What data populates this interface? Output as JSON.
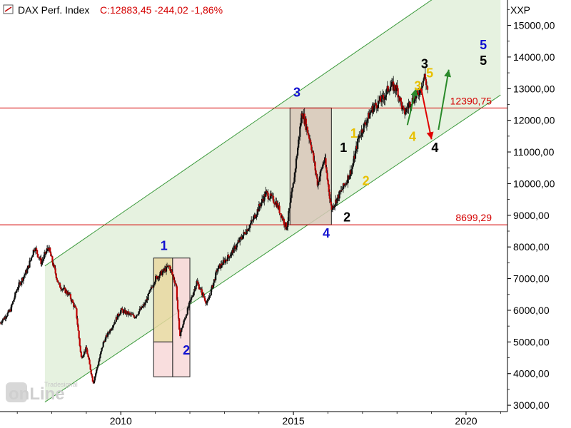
{
  "header": {
    "instrument": "DAX Perf. Index",
    "close_info": "C:12883,45 -244,02 -1,86%",
    "currency": "XXP"
  },
  "watermark": {
    "brand_small": "Tradesignal",
    "brand_large": "onLine"
  },
  "colors": {
    "channel_fill": "#e6f2e0",
    "channel_line": "#3c9a3c",
    "hline": "#d40000",
    "candle_up": "#111111",
    "candle_down": "#c00000",
    "wave_blue": "#1010d0",
    "wave_black": "#000000",
    "wave_yellow": "#e8c000",
    "arrow_red": "#e00000",
    "arrow_green": "#2a8a2a",
    "box_brown": "#d8c8b8",
    "box_pink": "#f8d8d8",
    "box_yellow": "#e8d8a0"
  },
  "chart_data": {
    "type": "candlestick",
    "title": "DAX Perf. Index",
    "ylim": [
      2800,
      15800
    ],
    "y_ticks": [
      3000,
      4000,
      5000,
      6000,
      7000,
      8000,
      9000,
      10000,
      11000,
      12000,
      13000,
      14000,
      15000
    ],
    "y_tick_labels": [
      "3000,00",
      "4000,00",
      "5000,00",
      "6000,00",
      "7000,00",
      "8000,00",
      "9000,00",
      "10000,00",
      "11000,00",
      "12000,00",
      "13000,00",
      "14000,00",
      "15000,00"
    ],
    "xlim": [
      2006.5,
      2021.2
    ],
    "x_ticks": [
      2010,
      2015,
      2020
    ],
    "x_tick_labels": [
      "2010",
      "2015",
      "2020"
    ],
    "horizontal_lines": [
      {
        "value": 12390.75,
        "label": "12390,75"
      },
      {
        "value": 8699.29,
        "label": "8699,29"
      }
    ],
    "price_path": [
      [
        2006.5,
        5600
      ],
      [
        2006.8,
        6000
      ],
      [
        2007.0,
        6700
      ],
      [
        2007.3,
        7300
      ],
      [
        2007.5,
        8000
      ],
      [
        2007.7,
        7500
      ],
      [
        2007.9,
        8000
      ],
      [
        2008.0,
        7600
      ],
      [
        2008.2,
        6800
      ],
      [
        2008.5,
        6500
      ],
      [
        2008.7,
        6000
      ],
      [
        2008.85,
        4500
      ],
      [
        2009.0,
        4800
      ],
      [
        2009.2,
        3700
      ],
      [
        2009.5,
        5000
      ],
      [
        2009.8,
        5600
      ],
      [
        2010.0,
        6000
      ],
      [
        2010.4,
        5800
      ],
      [
        2010.7,
        6200
      ],
      [
        2011.0,
        7000
      ],
      [
        2011.4,
        7400
      ],
      [
        2011.6,
        6800
      ],
      [
        2011.7,
        5200
      ],
      [
        2011.9,
        5900
      ],
      [
        2012.2,
        6900
      ],
      [
        2012.5,
        6200
      ],
      [
        2012.8,
        7300
      ],
      [
        2013.2,
        7800
      ],
      [
        2013.5,
        8300
      ],
      [
        2013.8,
        8800
      ],
      [
        2014.2,
        9700
      ],
      [
        2014.5,
        9400
      ],
      [
        2014.8,
        8600
      ],
      [
        2015.0,
        10000
      ],
      [
        2015.25,
        12300
      ],
      [
        2015.5,
        11300
      ],
      [
        2015.7,
        10000
      ],
      [
        2015.9,
        10800
      ],
      [
        2016.1,
        9200
      ],
      [
        2016.5,
        10000
      ],
      [
        2016.7,
        10500
      ],
      [
        2016.9,
        11500
      ],
      [
        2017.3,
        12400
      ],
      [
        2017.6,
        12700
      ],
      [
        2017.8,
        13100
      ],
      [
        2018.0,
        13000
      ],
      [
        2018.2,
        12200
      ],
      [
        2018.4,
        12600
      ],
      [
        2018.6,
        12800
      ],
      [
        2018.8,
        13400
      ],
      [
        2018.9,
        12883
      ]
    ],
    "channel_upper": [
      [
        2007.8,
        7400
      ],
      [
        2021.0,
        17300
      ]
    ],
    "channel_lower": [
      [
        2007.8,
        3100
      ],
      [
        2021.0,
        12800
      ]
    ],
    "annotations": [
      {
        "text": "1",
        "x": 2011.25,
        "y": 7900,
        "color": "blue"
      },
      {
        "text": "2",
        "x": 2011.9,
        "y": 4600,
        "color": "blue"
      },
      {
        "text": "3",
        "x": 2015.1,
        "y": 12750,
        "color": "blue"
      },
      {
        "text": "4",
        "x": 2015.95,
        "y": 8300,
        "color": "blue"
      },
      {
        "text": "5",
        "x": 2020.5,
        "y": 14250,
        "color": "blue"
      },
      {
        "text": "1",
        "x": 2016.45,
        "y": 11000,
        "color": "black"
      },
      {
        "text": "2",
        "x": 2016.55,
        "y": 8800,
        "color": "black"
      },
      {
        "text": "3",
        "x": 2018.8,
        "y": 13650,
        "color": "black"
      },
      {
        "text": "4",
        "x": 2019.1,
        "y": 11000,
        "color": "black"
      },
      {
        "text": "5",
        "x": 2020.5,
        "y": 13750,
        "color": "black"
      },
      {
        "text": "1",
        "x": 2016.75,
        "y": 11450,
        "color": "yellow"
      },
      {
        "text": "2",
        "x": 2017.1,
        "y": 9950,
        "color": "yellow"
      },
      {
        "text": "3",
        "x": 2018.6,
        "y": 12950,
        "color": "yellow"
      },
      {
        "text": "4",
        "x": 2018.45,
        "y": 11350,
        "color": "yellow"
      },
      {
        "text": "5",
        "x": 2018.95,
        "y": 13350,
        "color": "yellow"
      }
    ],
    "arrows": [
      {
        "color": "green",
        "from": [
          2018.3,
          11850
        ],
        "to": [
          2018.55,
          13000
        ]
      },
      {
        "color": "red",
        "from": [
          2018.7,
          13000
        ],
        "to": [
          2019.0,
          11400
        ]
      },
      {
        "color": "green",
        "from": [
          2019.2,
          11700
        ],
        "to": [
          2019.5,
          13600
        ]
      }
    ],
    "boxes": [
      {
        "color": "brown",
        "x0": 2014.9,
        "x1": 2016.1,
        "y0": 8700,
        "y1": 12390
      },
      {
        "color": "yellow",
        "x0": 2010.95,
        "x1": 2011.5,
        "y0": 5000,
        "y1": 7650
      },
      {
        "color": "pink",
        "x0": 2011.5,
        "x1": 2012.0,
        "y0": 3900,
        "y1": 7650
      },
      {
        "color": "pink",
        "x0": 2010.95,
        "x1": 2011.5,
        "y0": 3900,
        "y1": 5000
      }
    ]
  }
}
